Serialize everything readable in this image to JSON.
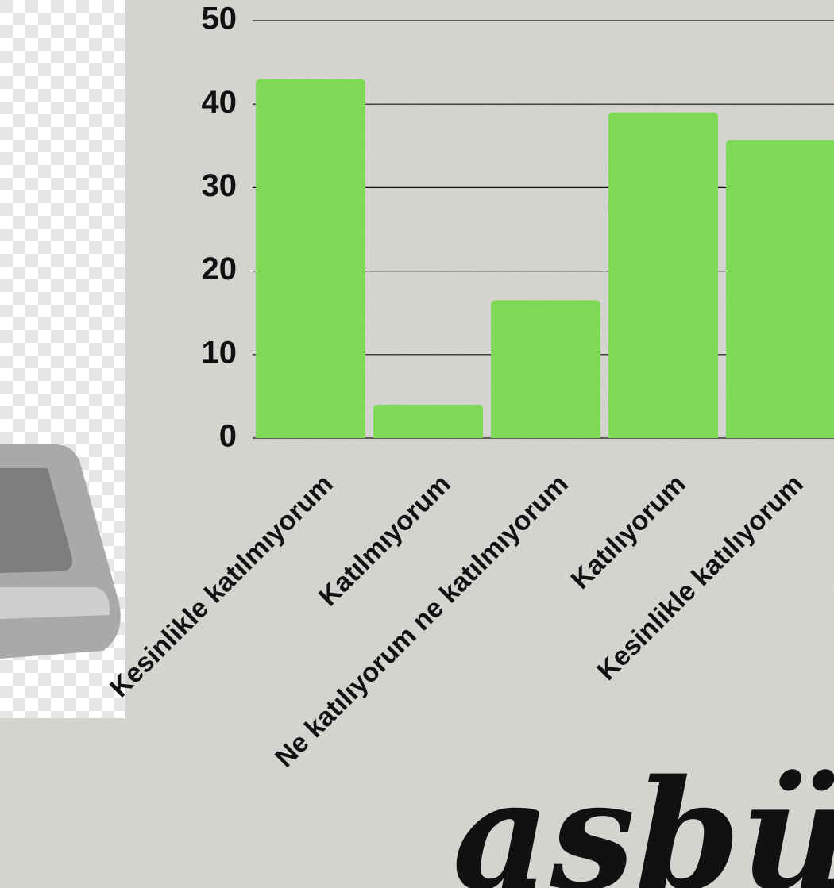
{
  "chart_data": {
    "type": "bar",
    "categories": [
      "Kesinlikle katılmıyorum",
      "Katılmıyorum",
      "Ne katılıyorum ne katılmıyorum",
      "Katılıyorum",
      "Kesinlikle katılıyorum"
    ],
    "values": [
      43,
      4,
      16.5,
      39,
      35.7
    ],
    "color": "#7ed957",
    "ylim": [
      0,
      50
    ],
    "yticks": [
      0,
      10,
      20,
      30,
      40,
      50
    ],
    "grid": true
  },
  "brand_text": "asbü"
}
